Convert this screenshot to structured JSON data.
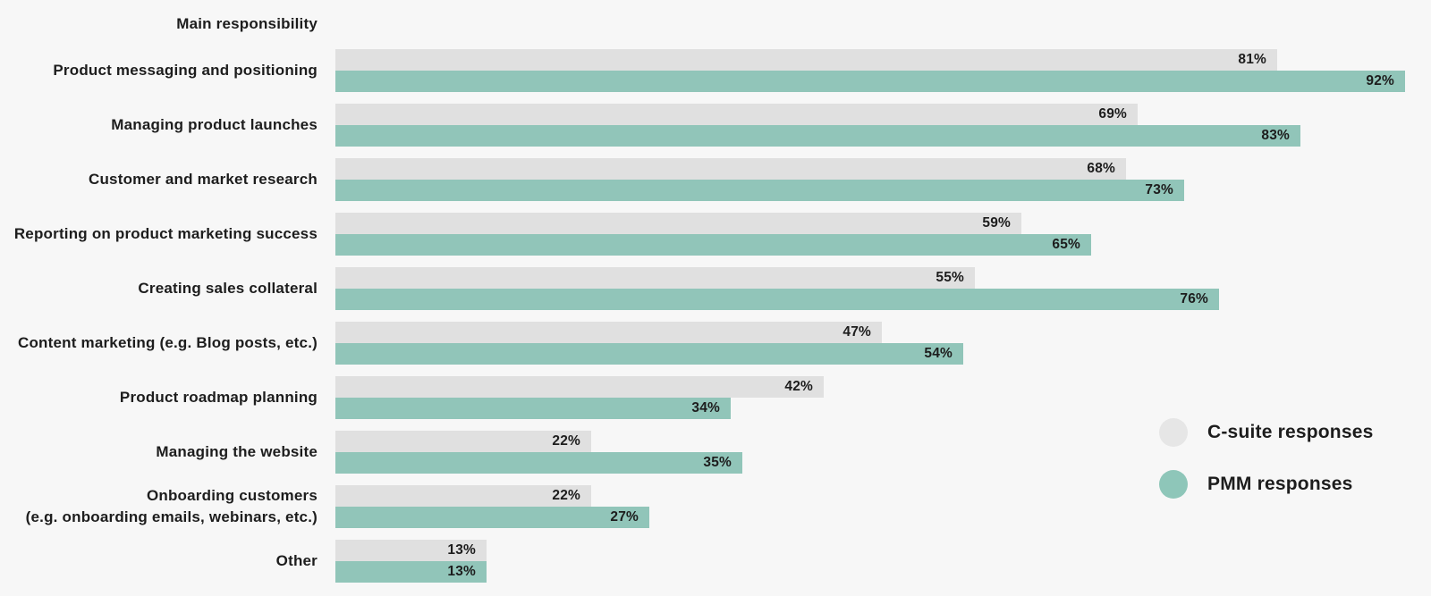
{
  "chart_data": {
    "type": "bar",
    "orientation": "horizontal",
    "title": "Main responsibility",
    "categories": [
      "Product messaging and positioning",
      "Managing product launches",
      "Customer and market research",
      "Reporting on product marketing success",
      "Creating sales collateral",
      "Content marketing (e.g. Blog posts, etc.)",
      "Product roadmap planning",
      "Managing the website",
      "Onboarding customers\n(e.g. onboarding emails, webinars, etc.)",
      "Other"
    ],
    "series": [
      {
        "name": "C-suite responses",
        "color": "#e0e0e0",
        "legend_color": "#e6e6e6",
        "values": [
          81,
          69,
          68,
          59,
          55,
          47,
          42,
          22,
          22,
          13
        ]
      },
      {
        "name": "PMM responses",
        "color": "#91c5b9",
        "legend_color": "#8ec6b9",
        "values": [
          92,
          83,
          73,
          65,
          76,
          54,
          34,
          35,
          27,
          13
        ]
      }
    ],
    "value_suffix": "%",
    "xlim": [
      0,
      100
    ],
    "grid": false,
    "legend_position": "right",
    "background_color": "#f7f7f7",
    "text_color": "#1d1d1d"
  }
}
